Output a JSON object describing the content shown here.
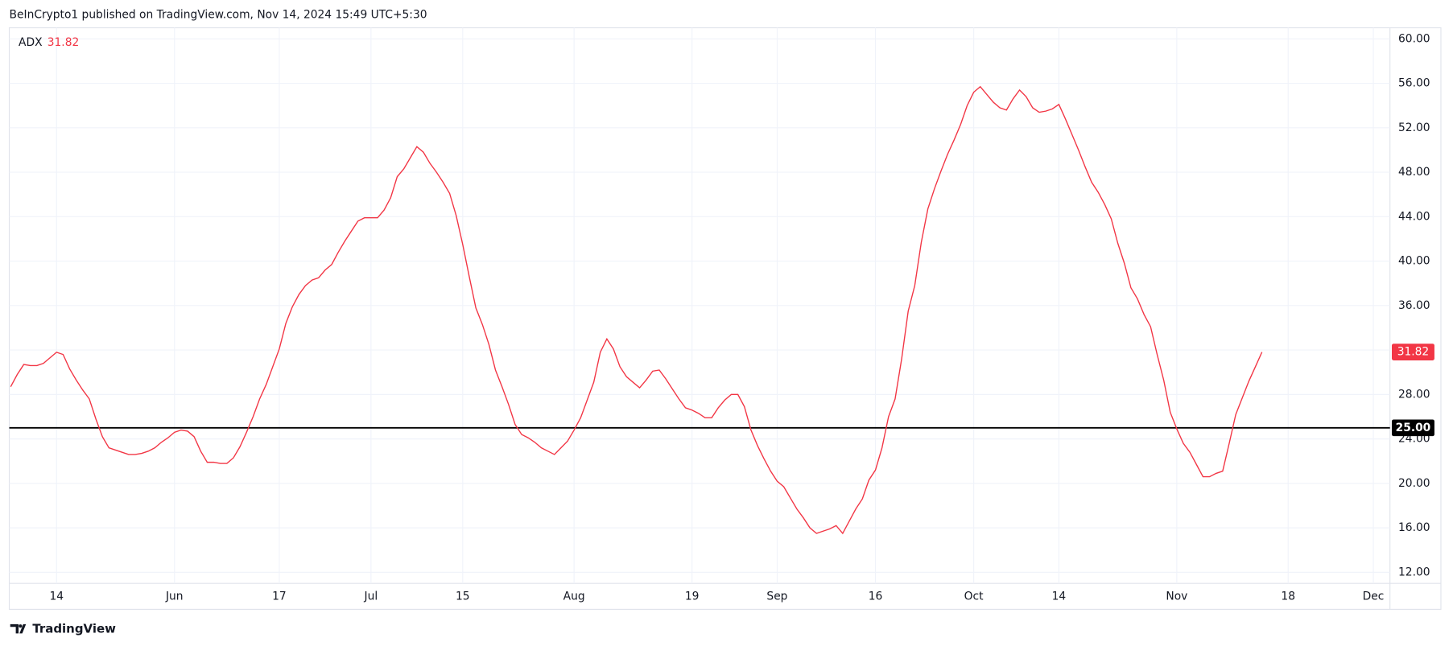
{
  "header": "BeInCrypto1 published on TradingView.com, Nov 14, 2024 15:49 UTC+5:30",
  "footer": "TradingView",
  "chart_data": {
    "type": "line",
    "categories": [
      null,
      null,
      null,
      null,
      null,
      null,
      null,
      "14",
      null,
      null,
      null,
      null,
      null,
      null,
      null,
      null,
      null,
      null,
      null,
      null,
      null,
      null,
      null,
      null,
      null,
      "Jun",
      null,
      null,
      null,
      null,
      null,
      null,
      null,
      null,
      null,
      null,
      null,
      null,
      null,
      null,
      null,
      "17",
      null,
      null,
      null,
      null,
      null,
      null,
      null,
      null,
      null,
      null,
      null,
      null,
      null,
      "Jul",
      null,
      null,
      null,
      null,
      null,
      null,
      null,
      null,
      null,
      null,
      null,
      null,
      null,
      "15",
      null,
      null,
      null,
      null,
      null,
      null,
      null,
      null,
      null,
      null,
      null,
      null,
      null,
      null,
      null,
      null,
      "Aug",
      null,
      null,
      null,
      null,
      null,
      null,
      null,
      null,
      null,
      null,
      null,
      null,
      null,
      null,
      null,
      null,
      null,
      "19",
      null,
      null,
      null,
      null,
      null,
      null,
      null,
      null,
      null,
      null,
      null,
      null,
      "Sep",
      null,
      null,
      null,
      null,
      null,
      null,
      null,
      null,
      null,
      null,
      null,
      null,
      null,
      null,
      "16",
      null,
      null,
      null,
      null,
      null,
      null,
      null,
      null,
      null,
      null,
      null,
      null,
      null,
      null,
      "Oct",
      null,
      null,
      null,
      null,
      null,
      null,
      null,
      null,
      null,
      null,
      null,
      null,
      "14",
      null,
      null,
      null,
      null,
      null,
      null,
      null,
      null,
      null,
      null,
      null,
      null,
      null,
      null,
      null,
      null,
      null,
      "Nov",
      null,
      null,
      null,
      null,
      null,
      null,
      null,
      null,
      null,
      null,
      null,
      null,
      null,
      null,
      null,
      null,
      "18",
      null,
      null,
      null,
      null,
      null,
      null,
      null,
      null,
      null,
      null,
      null,
      null,
      "Dec",
      null,
      null
    ],
    "series": [
      {
        "name": "ADX",
        "color": "#f23645",
        "values": [
          28.7,
          29.8,
          30.7,
          30.6,
          30.6,
          30.8,
          31.3,
          31.8,
          31.6,
          30.3,
          29.3,
          28.4,
          27.6,
          25.8,
          24.2,
          23.2,
          23.0,
          22.8,
          22.6,
          22.6,
          22.7,
          22.9,
          23.2,
          23.7,
          24.1,
          24.6,
          24.8,
          24.7,
          24.2,
          22.9,
          21.9,
          21.9,
          21.8,
          21.8,
          22.3,
          23.3,
          24.6,
          26.0,
          27.6,
          28.9,
          30.5,
          32.1,
          34.4,
          35.9,
          37.0,
          37.8,
          38.3,
          38.5,
          39.2,
          39.7,
          40.8,
          41.8,
          42.7,
          43.6,
          43.9,
          43.9,
          43.9,
          44.6,
          45.7,
          47.6,
          48.3,
          49.3,
          50.3,
          49.8,
          48.8,
          48.0,
          47.1,
          46.1,
          44.1,
          41.5,
          38.6,
          35.8,
          34.3,
          32.5,
          30.2,
          28.7,
          27.1,
          25.3,
          24.4,
          24.1,
          23.7,
          23.2,
          22.9,
          22.6,
          23.2,
          23.8,
          24.8,
          25.9,
          27.5,
          29.1,
          31.8,
          33.0,
          32.1,
          30.5,
          29.6,
          29.1,
          28.6,
          29.3,
          30.1,
          30.2,
          29.4,
          28.5,
          27.6,
          26.8,
          26.6,
          26.3,
          25.9,
          25.9,
          26.8,
          27.5,
          28.0,
          28.0,
          26.9,
          24.8,
          23.4,
          22.2,
          21.1,
          20.2,
          19.7,
          18.7,
          17.7,
          16.9,
          16.0,
          15.5,
          15.7,
          15.9,
          16.2,
          15.5,
          16.6,
          17.7,
          18.6,
          20.3,
          21.2,
          23.2,
          26.0,
          27.6,
          31.2,
          35.5,
          37.8,
          41.7,
          44.7,
          46.5,
          48.1,
          49.6,
          50.9,
          52.3,
          54.0,
          55.2,
          55.7,
          55.0,
          54.3,
          53.8,
          53.6,
          54.6,
          55.4,
          54.8,
          53.8,
          53.4,
          53.5,
          53.7,
          54.1,
          52.8,
          51.4,
          50.0,
          48.5,
          47.1,
          46.2,
          45.1,
          43.8,
          41.6,
          39.8,
          37.6,
          36.6,
          35.2,
          34.1,
          31.6,
          29.3,
          26.4,
          24.9,
          23.6,
          22.8,
          21.7,
          20.6,
          20.6,
          20.9,
          21.1,
          23.6,
          26.2,
          27.7,
          29.2,
          30.5,
          31.82,
          null,
          null,
          null,
          null,
          null,
          null,
          null,
          null,
          null,
          null,
          null,
          null,
          null,
          null,
          null,
          null,
          null,
          null,
          null
        ]
      }
    ],
    "reference_line": {
      "value": 25,
      "label": "25.00",
      "color": "#000000"
    },
    "ylim": [
      11,
      61
    ],
    "yticks": [
      {
        "value": 12,
        "label": "12.00"
      },
      {
        "value": 16,
        "label": "16.00"
      },
      {
        "value": 20,
        "label": "20.00"
      },
      {
        "value": 24,
        "label": "24.00"
      },
      {
        "value": 28,
        "label": "28.00"
      },
      {
        "value": 32,
        "label": "32.00"
      },
      {
        "value": 36,
        "label": "36.00"
      },
      {
        "value": 40,
        "label": "40.00"
      },
      {
        "value": 44,
        "label": "44.00"
      },
      {
        "value": 48,
        "label": "48.00"
      },
      {
        "value": 52,
        "label": "52.00"
      },
      {
        "value": 56,
        "label": "56.00"
      },
      {
        "value": 60,
        "label": "60.00"
      }
    ],
    "grid": true
  }
}
